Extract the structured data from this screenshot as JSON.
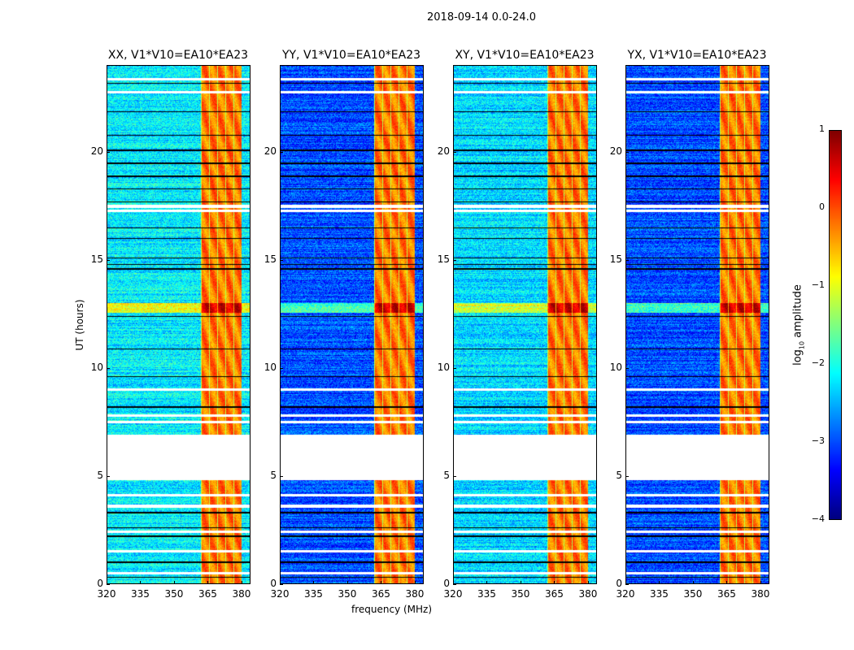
{
  "figure_title": "2018-09-14 0.0-24.0",
  "chart_data": {
    "type": "heatmap",
    "title": "2018-09-14 0.0-24.0",
    "xlabel": "frequency (MHz)",
    "ylabel": "UT (hours)",
    "xlim": [
      320,
      384
    ],
    "ylim": [
      0,
      24
    ],
    "xticks": [
      "320",
      "335",
      "350",
      "365",
      "380"
    ],
    "yticks": [
      "0",
      "5",
      "10",
      "15",
      "20"
    ],
    "panels": [
      {
        "title": "XX, V1*V10=EA10*EA23",
        "baseline_log10": -2.2
      },
      {
        "title": "YY, V1*V10=EA10*EA23",
        "baseline_log10": -3.0
      },
      {
        "title": "XY, V1*V10=EA10*EA23",
        "baseline_log10": -2.3
      },
      {
        "title": "YX, V1*V10=EA10*EA23",
        "baseline_log10": -3.0
      }
    ],
    "rfi_band_mhz": [
      362,
      380
    ],
    "bright_interval_hours": [
      12.55,
      13.0
    ],
    "data_gap_hours": [
      4.8,
      6.9
    ],
    "flagged_hours": [
      0.5,
      1.5,
      2.4,
      3.6,
      4.1,
      7.5,
      7.8,
      9.0,
      17.3,
      17.5,
      22.8,
      23.4
    ],
    "colorbar": {
      "label": "log10 amplitude",
      "label_main": "log",
      "label_sub": "10",
      "label_rest": " amplitude",
      "range": [
        -4,
        1
      ],
      "ticks": [
        "1",
        "0",
        "−1",
        "−2",
        "−3",
        "−4"
      ],
      "colormap": "jet"
    }
  }
}
